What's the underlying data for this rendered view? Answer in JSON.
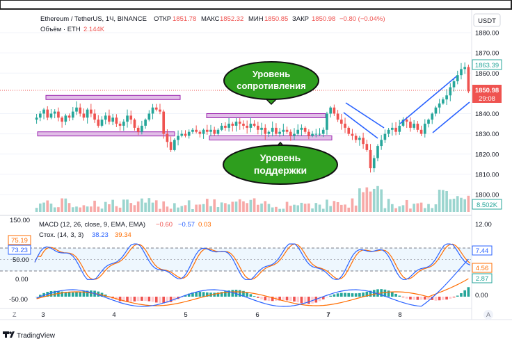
{
  "header": {
    "symbol": "Ethereum / TetherUS, 1Ч, BINANCE",
    "open_label": "ОТКР",
    "open": "1851.78",
    "high_label": "МАКС",
    "high": "1852.32",
    "low_label": "МИН",
    "low": "1850.85",
    "close_label": "ЗАКР",
    "close": "1850.98",
    "change": "−0.80 (−0.04%)",
    "volume_label": "Объём · ETH",
    "volume": "2.144K"
  },
  "currency_button": "USDT",
  "price_scale": [
    "1880.00",
    "1870.00",
    "1860.00",
    "1840.00",
    "1830.00",
    "1820.00",
    "1810.00",
    "1800.00"
  ],
  "price_tags": {
    "ma": "1863.39",
    "last": "1850.98",
    "countdown": "29:08",
    "volume": "8.502K"
  },
  "annotations": {
    "resistance": "Уровень сопротивления",
    "support": "Уровень поддержки"
  },
  "indicators": {
    "macd_label": "MACD (12, 26, close, 9, EMA, EMA)",
    "macd_values": [
      "−0.60",
      "−0.57",
      "0.03"
    ],
    "stoch_label": "Стох. (14, 3, 3)",
    "stoch_values": [
      "38.23",
      "39.34"
    ]
  },
  "indicator_scale_left": [
    "150.00",
    "50.00",
    "0.00",
    "-50.00"
  ],
  "indicator_tags_left": [
    "75.19",
    "73.23"
  ],
  "indicator_scale_right": [
    "12.00",
    "0.00"
  ],
  "indicator_tags_right": [
    "7.44",
    "4.56",
    "2.87"
  ],
  "time_axis": [
    "3",
    "4",
    "5",
    "6",
    "7",
    "8"
  ],
  "axis_buttons": {
    "zoom": "Z",
    "auto": "A"
  },
  "footer": {
    "brand": "TradingView"
  },
  "colors": {
    "up": "#26a69a",
    "down": "#ef5350",
    "zone_fill": "#e1bee7",
    "zone_border": "#9c27b0",
    "trend": "#2962ff",
    "callout": "#2e9e1e",
    "stoch_k": "#2962ff",
    "stoch_d": "#ff6d00",
    "last_price": "#ef5350"
  },
  "chart_data": {
    "type": "candlestick",
    "symbol": "ETH/USDT",
    "timeframe": "1h",
    "x_ticks": [
      "3",
      "4",
      "5",
      "6",
      "7",
      "8"
    ],
    "y_range": [
      1800,
      1880
    ],
    "close_path": [
      1838,
      1840,
      1842,
      1838,
      1840,
      1841,
      1838,
      1836,
      1839,
      1838,
      1841,
      1843,
      1840,
      1838,
      1842,
      1840,
      1837,
      1834,
      1837,
      1839,
      1836,
      1838,
      1835,
      1834,
      1836,
      1839,
      1837,
      1833,
      1831,
      1834,
      1837,
      1840,
      1843,
      1842,
      1841,
      1830,
      1826,
      1822,
      1827,
      1829,
      1830,
      1829,
      1831,
      1832,
      1831,
      1830,
      1832,
      1831,
      1832,
      1830,
      1832,
      1834,
      1833,
      1835,
      1834,
      1836,
      1835,
      1834,
      1833,
      1835,
      1834,
      1832,
      1833,
      1830,
      1831,
      1833,
      1830,
      1831,
      1832,
      1831,
      1829,
      1830,
      1832,
      1833,
      1831,
      1829,
      1830,
      1830,
      1830,
      1832,
      1840,
      1843,
      1840,
      1837,
      1835,
      1833,
      1830,
      1829,
      1827,
      1828,
      1825,
      1822,
      1813,
      1818,
      1824,
      1827,
      1830,
      1832,
      1833,
      1831,
      1834,
      1837,
      1836,
      1833,
      1835,
      1832,
      1830,
      1835,
      1837,
      1840,
      1843,
      1845,
      1847,
      1849,
      1853,
      1856,
      1859,
      1862,
      1863,
      1851
    ],
    "last_close": 1850.98,
    "support_zone": [
      1827,
      1831
    ],
    "resistance_zone": [
      1838,
      1842
    ],
    "current_resistance_line": 1850.98
  }
}
